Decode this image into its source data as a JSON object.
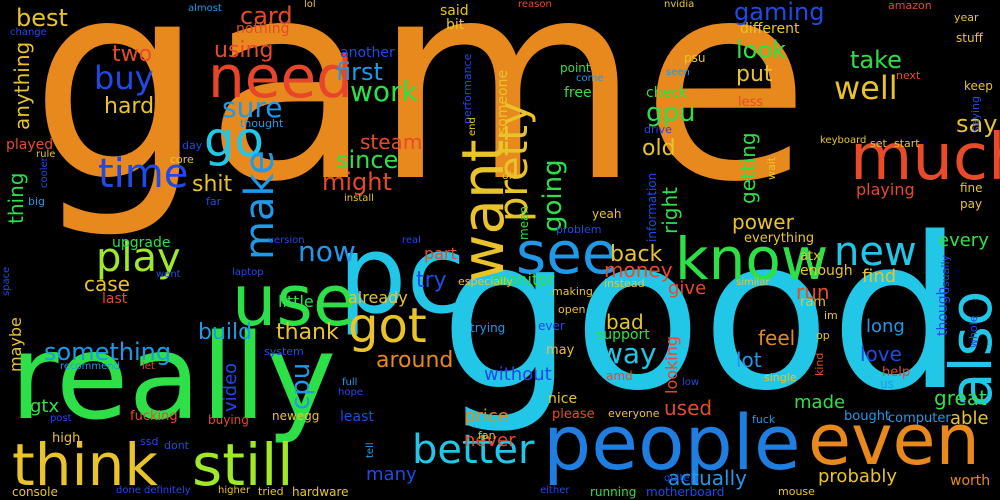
{
  "words": [
    {
      "text": "game",
      "color": "#e8891d"
    },
    {
      "text": "good",
      "color": "#22c6e6"
    },
    {
      "text": "really",
      "color": "#2ee048"
    },
    {
      "text": "pc",
      "color": "#22c6e6"
    },
    {
      "text": "use",
      "color": "#2ee048"
    },
    {
      "text": "people",
      "color": "#1f7fe0"
    },
    {
      "text": "even",
      "color": "#e8891d"
    },
    {
      "text": "much",
      "color": "#e84a2a"
    },
    {
      "text": "think",
      "color": "#e8c42a"
    },
    {
      "text": "still",
      "color": "#a0e82a"
    },
    {
      "text": "need",
      "color": "#e8462a"
    },
    {
      "text": "know",
      "color": "#2ee048"
    },
    {
      "text": "want",
      "color": "#e8c42a"
    },
    {
      "text": "also",
      "color": "#22c6e6"
    },
    {
      "text": "see",
      "color": "#1f9ae8"
    },
    {
      "text": "got",
      "color": "#e8c42a"
    },
    {
      "text": "go",
      "color": "#22c6e6"
    },
    {
      "text": "time",
      "color": "#1f4ae8"
    },
    {
      "text": "play",
      "color": "#a0e82a"
    },
    {
      "text": "better",
      "color": "#22c6e6"
    },
    {
      "text": "new",
      "color": "#22c6e6"
    },
    {
      "text": "pretty",
      "color": "#e8c42a"
    },
    {
      "text": "make",
      "color": "#1f9ae8"
    },
    {
      "text": "now",
      "color": "#1f9ae8"
    },
    {
      "text": "buy",
      "color": "#1f4ae8"
    },
    {
      "text": "well",
      "color": "#e8c42a"
    },
    {
      "text": "work",
      "color": "#2ee048"
    },
    {
      "text": "first",
      "color": "#1f9ae8"
    },
    {
      "text": "sure",
      "color": "#1f9ae8"
    },
    {
      "text": "card",
      "color": "#e84a2a"
    },
    {
      "text": "using",
      "color": "#e84a2a"
    },
    {
      "text": "going",
      "color": "#2ee048"
    },
    {
      "text": "gpu",
      "color": "#2ee048"
    },
    {
      "text": "gaming",
      "color": "#1f4ae8"
    },
    {
      "text": "say",
      "color": "#e8c42a"
    },
    {
      "text": "look",
      "color": "#2ee048"
    },
    {
      "text": "take",
      "color": "#2ee048"
    },
    {
      "text": "put",
      "color": "#e8c42a"
    },
    {
      "text": "since",
      "color": "#2ee048"
    },
    {
      "text": "steam",
      "color": "#e84a2a"
    },
    {
      "text": "might",
      "color": "#e84a2a"
    },
    {
      "text": "shit",
      "color": "#e8c42a"
    },
    {
      "text": "two",
      "color": "#e84a2a"
    },
    {
      "text": "hard",
      "color": "#e8c42a"
    },
    {
      "text": "best",
      "color": "#e8c42a"
    },
    {
      "text": "anything",
      "color": "#e8c42a"
    },
    {
      "text": "thing",
      "color": "#2ee048"
    },
    {
      "text": "played",
      "color": "#e84a2a"
    },
    {
      "text": "something",
      "color": "#1f9ae8"
    },
    {
      "text": "case",
      "color": "#e8c42a"
    },
    {
      "text": "last",
      "color": "#e84a2a"
    },
    {
      "text": "upgrade",
      "color": "#2ee048"
    },
    {
      "text": "build",
      "color": "#1f9ae8"
    },
    {
      "text": "thank",
      "color": "#e8c42a"
    },
    {
      "text": "little",
      "color": "#2ee048"
    },
    {
      "text": "already",
      "color": "#e8c42a"
    },
    {
      "text": "money",
      "color": "#e84a2a"
    },
    {
      "text": "part",
      "color": "#e84a2a"
    },
    {
      "text": "try",
      "color": "#1f4ae8"
    },
    {
      "text": "back",
      "color": "#e8c42a"
    },
    {
      "text": "around",
      "color": "#e8891d"
    },
    {
      "text": "way",
      "color": "#22c6e6"
    },
    {
      "text": "bad",
      "color": "#e8c42a"
    },
    {
      "text": "without",
      "color": "#1f4ae8"
    },
    {
      "text": "cpu",
      "color": "#1f9ae8"
    },
    {
      "text": "video",
      "color": "#1f4ae8"
    },
    {
      "text": "old",
      "color": "#e8c42a"
    },
    {
      "text": "right",
      "color": "#2ee048"
    },
    {
      "text": "getting",
      "color": "#2ee048"
    },
    {
      "text": "power",
      "color": "#e8c42a"
    },
    {
      "text": "run",
      "color": "#e84a2a"
    },
    {
      "text": "give",
      "color": "#e84a2a"
    },
    {
      "text": "find",
      "color": "#e8c42a"
    },
    {
      "text": "feel",
      "color": "#e8891d"
    },
    {
      "text": "lot",
      "color": "#1f9ae8"
    },
    {
      "text": "love",
      "color": "#1f4ae8"
    },
    {
      "text": "long",
      "color": "#1f9ae8"
    },
    {
      "text": "made",
      "color": "#2ee048"
    },
    {
      "text": "great",
      "color": "#2ee048"
    },
    {
      "text": "able",
      "color": "#e8c42a"
    },
    {
      "text": "every",
      "color": "#2ee048"
    },
    {
      "text": "playing",
      "color": "#e84a2a"
    },
    {
      "text": "actually",
      "color": "#1f9ae8"
    },
    {
      "text": "probably",
      "color": "#e8c42a"
    },
    {
      "text": "used",
      "color": "#e84a2a"
    },
    {
      "text": "price",
      "color": "#e8891d"
    },
    {
      "text": "never",
      "color": "#e84a2a"
    },
    {
      "text": "many",
      "color": "#1f4ae8"
    },
    {
      "text": "monitor",
      "color": "#2ee048"
    },
    {
      "text": "looking",
      "color": "#e84a2a"
    },
    {
      "text": "gtx",
      "color": "#2ee048"
    },
    {
      "text": "maybe",
      "color": "#e8c42a"
    },
    {
      "text": "enough",
      "color": "#e8c42a"
    },
    {
      "text": "least",
      "color": "#1f4ae8"
    },
    {
      "text": "nothing",
      "color": "#e84a2a"
    },
    {
      "text": "different",
      "color": "#e8c42a"
    },
    {
      "text": "free",
      "color": "#2ee048"
    },
    {
      "text": "check",
      "color": "#2ee048"
    },
    {
      "text": "said",
      "color": "#e8c42a"
    },
    {
      "text": "bit",
      "color": "#e8c42a"
    },
    {
      "text": "someone",
      "color": "#e8c42a"
    },
    {
      "text": "another",
      "color": "#1f4ae8"
    },
    {
      "text": "point",
      "color": "#2ee048"
    },
    {
      "text": "less",
      "color": "#e84a2a"
    },
    {
      "text": "everything",
      "color": "#e8c42a"
    },
    {
      "text": "support",
      "color": "#2ee048"
    },
    {
      "text": "may",
      "color": "#e8c42a"
    },
    {
      "text": "nice",
      "color": "#e8c42a"
    },
    {
      "text": "please",
      "color": "#e84a2a"
    },
    {
      "text": "ever",
      "color": "#1f4ae8"
    },
    {
      "text": "trying",
      "color": "#1f9ae8"
    },
    {
      "text": "fucking",
      "color": "#e84a2a"
    },
    {
      "text": "buying",
      "color": "#e84a2a"
    },
    {
      "text": "newegg",
      "color": "#e8c42a"
    },
    {
      "text": "system",
      "color": "#1f4ae8"
    },
    {
      "text": "computer",
      "color": "#1f9ae8"
    },
    {
      "text": "bought",
      "color": "#1f9ae8"
    },
    {
      "text": "help",
      "color": "#e84a2a"
    },
    {
      "text": "ram",
      "color": "#e8c42a"
    },
    {
      "text": "atx",
      "color": "#e8c42a"
    },
    {
      "text": "though",
      "color": "#1f4ae8"
    },
    {
      "text": "worth",
      "color": "#e8891d"
    },
    {
      "text": "high",
      "color": "#e8c42a"
    },
    {
      "text": "console",
      "color": "#e8c42a"
    },
    {
      "text": "hardware",
      "color": "#e8c42a"
    },
    {
      "text": "motherboard",
      "color": "#1f4ae8"
    },
    {
      "text": "running",
      "color": "#2ee048"
    },
    {
      "text": "fan",
      "color": "#e8c42a"
    },
    {
      "text": "amd",
      "color": "#e84a2a"
    },
    {
      "text": "mean",
      "color": "#2ee048"
    },
    {
      "text": "information",
      "color": "#1f4ae8"
    },
    {
      "text": "drive",
      "color": "#1f4ae8"
    },
    {
      "text": "performance",
      "color": "#1f4ae8"
    },
    {
      "text": "especially",
      "color": "#e8c42a"
    },
    {
      "text": "ssd",
      "color": "#1f4ae8"
    },
    {
      "text": "dont",
      "color": "#1f4ae8"
    },
    {
      "text": "problem",
      "color": "#1f4ae8"
    },
    {
      "text": "yeah",
      "color": "#e8c42a"
    },
    {
      "text": "instead",
      "color": "#e8c42a"
    },
    {
      "text": "making",
      "color": "#e8c42a"
    },
    {
      "text": "open",
      "color": "#e8c42a"
    },
    {
      "text": "kind",
      "color": "#e84a2a"
    },
    {
      "text": "us",
      "color": "#1f9ae8"
    },
    {
      "text": "fine",
      "color": "#e8c42a"
    },
    {
      "text": "pay",
      "color": "#e8c42a"
    },
    {
      "text": "keep",
      "color": "#e8c42a"
    },
    {
      "text": "stuff",
      "color": "#e8c42a"
    },
    {
      "text": "year",
      "color": "#e8c42a"
    },
    {
      "text": "amazon",
      "color": "#e84a2a"
    },
    {
      "text": "saying",
      "color": "#1f4ae8"
    },
    {
      "text": "usually",
      "color": "#1f4ae8"
    },
    {
      "text": "whole",
      "color": "#1f4ae8"
    },
    {
      "text": "set",
      "color": "#e8c42a"
    },
    {
      "text": "start",
      "color": "#e8c42a"
    },
    {
      "text": "keyboard",
      "color": "#e8c42a"
    },
    {
      "text": "wait",
      "color": "#e8c42a"
    },
    {
      "text": "next",
      "color": "#e84a2a"
    },
    {
      "text": "seen",
      "color": "#1f9ae8"
    },
    {
      "text": "psu",
      "color": "#e8c42a"
    },
    {
      "text": "come",
      "color": "#1f9ae8"
    },
    {
      "text": "nvidia",
      "color": "#e8c42a"
    },
    {
      "text": "reason",
      "color": "#e84a2a"
    },
    {
      "text": "lol",
      "color": "#e8c42a"
    },
    {
      "text": "almost",
      "color": "#1f9ae8"
    },
    {
      "text": "change",
      "color": "#1f4ae8"
    },
    {
      "text": "thought",
      "color": "#1f9ae8"
    },
    {
      "text": "day",
      "color": "#1f4ae8"
    },
    {
      "text": "core",
      "color": "#e8c42a"
    },
    {
      "text": "far",
      "color": "#1f4ae8"
    },
    {
      "text": "install",
      "color": "#e8c42a"
    },
    {
      "text": "rule",
      "color": "#e8c42a"
    },
    {
      "text": "cooler",
      "color": "#1f4ae8"
    },
    {
      "text": "big",
      "color": "#1f9ae8"
    },
    {
      "text": "end",
      "color": "#e8c42a"
    },
    {
      "text": "oh",
      "color": "#e8c42a"
    },
    {
      "text": "version",
      "color": "#1f4ae8"
    },
    {
      "text": "real",
      "color": "#1f4ae8"
    },
    {
      "text": "laptop",
      "color": "#1f4ae8"
    },
    {
      "text": "went",
      "color": "#1f4ae8"
    },
    {
      "text": "space",
      "color": "#1f4ae8"
    },
    {
      "text": "recommend",
      "color": "#1f9ae8"
    },
    {
      "text": "let",
      "color": "#e84a2a"
    },
    {
      "text": "full",
      "color": "#1f9ae8"
    },
    {
      "text": "hope",
      "color": "#1f4ae8"
    },
    {
      "text": "tell",
      "color": "#1f9ae8"
    },
    {
      "text": "post",
      "color": "#1f4ae8"
    },
    {
      "text": "done",
      "color": "#1f4ae8"
    },
    {
      "text": "definitely",
      "color": "#1f4ae8"
    },
    {
      "text": "higher",
      "color": "#e8c42a"
    },
    {
      "text": "tried",
      "color": "#e8c42a"
    },
    {
      "text": "either",
      "color": "#1f4ae8"
    },
    {
      "text": "quite",
      "color": "#1f4ae8"
    },
    {
      "text": "mouse",
      "color": "#e8c42a"
    },
    {
      "text": "everyone",
      "color": "#e8c42a"
    },
    {
      "text": "fuck",
      "color": "#1f9ae8"
    },
    {
      "text": "single",
      "color": "#e8c42a"
    },
    {
      "text": "low",
      "color": "#1f4ae8"
    },
    {
      "text": "similar",
      "color": "#e8c42a"
    },
    {
      "text": "im",
      "color": "#e8c42a"
    },
    {
      "text": "op",
      "color": "#e8c42a"
    }
  ]
}
